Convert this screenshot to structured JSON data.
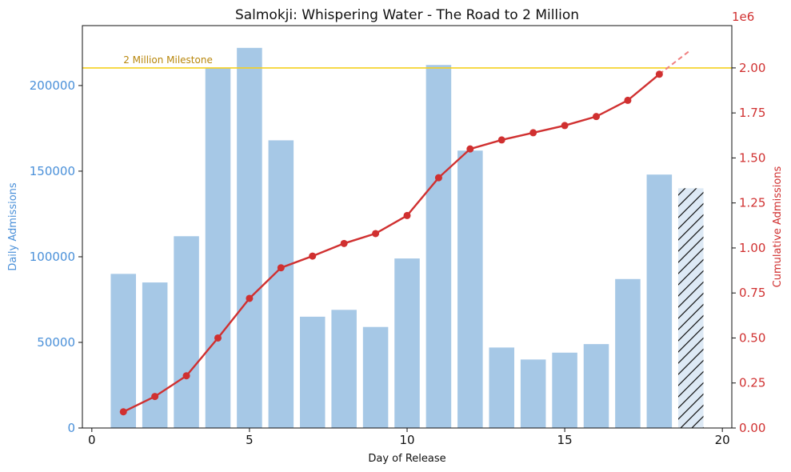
{
  "chart_data": {
    "type": "bar+line",
    "title": "Salmokji: Whispering Water - The Road to 2 Million",
    "xlabel": "Day of Release",
    "ylabel_left": "Daily Admissions",
    "ylabel_right": "Cumulative Admissions",
    "right_axis_multiplier": "1e6",
    "xlim": [
      -0.3,
      20.3
    ],
    "ylim_left": [
      0,
      235000
    ],
    "ylim_right": [
      0,
      2.235
    ],
    "x_ticks": [
      "0",
      "5",
      "10",
      "15",
      "20"
    ],
    "x_tick_values": [
      0,
      5,
      10,
      15,
      20
    ],
    "y_left_ticks": [
      "0",
      "50000",
      "100000",
      "150000",
      "200000"
    ],
    "y_left_tick_values": [
      0,
      50000,
      100000,
      150000,
      200000
    ],
    "y_right_ticks": [
      "0.00",
      "0.25",
      "0.50",
      "0.75",
      "1.00",
      "1.25",
      "1.50",
      "1.75",
      "2.00"
    ],
    "y_right_tick_values": [
      0,
      0.25,
      0.5,
      0.75,
      1.0,
      1.25,
      1.5,
      1.75,
      2.0
    ],
    "daily": {
      "days": [
        1,
        2,
        3,
        4,
        5,
        6,
        7,
        8,
        9,
        10,
        11,
        12,
        13,
        14,
        15,
        16,
        17,
        18
      ],
      "values": [
        90000,
        85000,
        112000,
        210000,
        222000,
        168000,
        65000,
        69000,
        59000,
        99000,
        212000,
        162000,
        47000,
        40000,
        44000,
        49000,
        87000,
        148000
      ],
      "color": "#a6c8e6"
    },
    "projected_bar": {
      "day": 19,
      "value": 140000,
      "fill": "#dde9f5",
      "hatch": "diagonal"
    },
    "cumulative": {
      "days": [
        1,
        2,
        3,
        4,
        5,
        6,
        7,
        8,
        9,
        10,
        11,
        12,
        13,
        14,
        15,
        16,
        17,
        18
      ],
      "values": [
        0.09,
        0.175,
        0.29,
        0.5,
        0.72,
        0.89,
        0.955,
        1.025,
        1.08,
        1.18,
        1.39,
        1.55,
        1.6,
        1.64,
        1.68,
        1.73,
        1.82,
        1.965
      ],
      "color": "#d03030"
    },
    "projection_line": {
      "from_day": 18,
      "to_day": 19,
      "from_value": 1.965,
      "to_value": 2.1,
      "color": "#f08080"
    },
    "milestone": {
      "value": 2.0,
      "label": "2 Million Milestone",
      "line_color": "#f5d020",
      "label_color": "#b8860b"
    },
    "colors": {
      "left_axis": "#4a90d9",
      "right_axis": "#d03030"
    },
    "grid": false
  }
}
